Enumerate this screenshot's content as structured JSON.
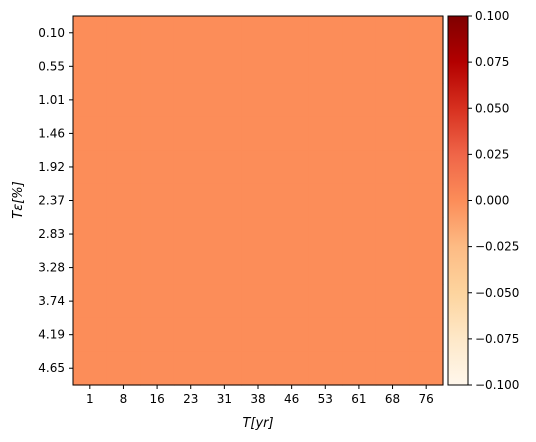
{
  "chart_data": {
    "type": "heatmap",
    "title": "",
    "xlabel": "T[yr]",
    "ylabel": "Tε[%]",
    "x_ticks": [
      "1",
      "8",
      "16",
      "23",
      "31",
      "38",
      "46",
      "53",
      "61",
      "68",
      "76"
    ],
    "y_ticks": [
      "0.10",
      "0.55",
      "1.01",
      "1.46",
      "1.92",
      "2.37",
      "2.83",
      "3.28",
      "3.74",
      "4.19",
      "4.65"
    ],
    "values_description": "uniform",
    "value": 0.0,
    "cell_color": "#fc8d59",
    "colorbar": {
      "colormap": "OrRd",
      "range": [
        -0.1,
        0.1
      ],
      "ticks": [
        "0.100",
        "0.075",
        "0.050",
        "0.025",
        "0.000",
        "−0.025",
        "−0.050",
        "−0.075",
        "−0.100"
      ],
      "tick_values": [
        0.1,
        0.075,
        0.05,
        0.025,
        0.0,
        -0.025,
        -0.05,
        -0.075,
        -0.1
      ],
      "colors": [
        "#fff7ec",
        "#fee8c8",
        "#fdd49e",
        "#fdbb84",
        "#fc8d59",
        "#ef6548",
        "#d7301f",
        "#b30000",
        "#7f0000"
      ]
    }
  }
}
